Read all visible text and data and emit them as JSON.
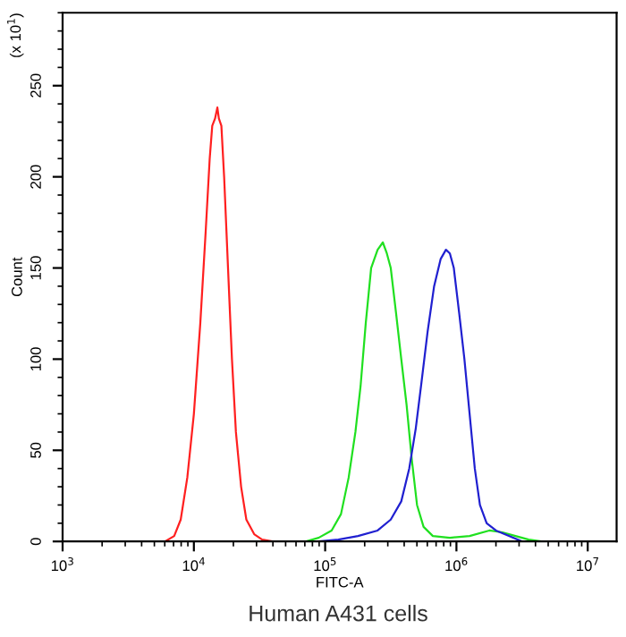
{
  "chart_data": {
    "type": "line",
    "xlabel": "FITC-A",
    "ylabel": "Count",
    "title": "Human A431 cells",
    "annotations": [
      "(x 10$^{1}$)"
    ],
    "log": "x",
    "grid": false,
    "legend": false,
    "marker": "none",
    "line_style": "solid",
    "xlim": [
      1000,
      16600000
    ],
    "ylim": [
      0,
      290
    ],
    "xticks": [
      {
        "value": 1000,
        "label": "10$^{3}$"
      },
      {
        "value": 10000,
        "label": "10$^{4}$"
      },
      {
        "value": 100000,
        "label": "10$^{5}$"
      },
      {
        "value": 1000000,
        "label": "10$^{6}$"
      },
      {
        "value": 10000000,
        "label": "10$^{7}$"
      }
    ],
    "yticks": [
      0,
      50,
      100,
      150,
      200,
      250
    ],
    "series": [
      {
        "color": "#ff2020",
        "x": [
          6030,
          7080,
          7940,
          8910,
          10000,
          11200,
          12300,
          13200,
          13800,
          14500,
          14800,
          15100,
          15500,
          16200,
          17000,
          18200,
          19500,
          20900,
          22900,
          25100,
          28800,
          33100,
          39800
        ],
        "values": [
          0,
          3,
          12,
          35,
          70,
          120,
          170,
          210,
          228,
          232,
          235,
          238,
          232,
          228,
          200,
          150,
          100,
          60,
          30,
          12,
          4,
          1,
          0
        ]
      },
      {
        "color": "#20e020",
        "x": [
          70800,
          89100,
          112000,
          132000,
          151000,
          170000,
          186000,
          204000,
          224000,
          251000,
          275000,
          295000,
          316000,
          347000,
          380000,
          417000,
          457000,
          501000,
          562000,
          661000,
          891000,
          1260000,
          1780000,
          2240000,
          2820000,
          3550000,
          4470000
        ],
        "values": [
          0,
          2,
          6,
          15,
          35,
          60,
          85,
          120,
          150,
          160,
          164,
          158,
          150,
          125,
          100,
          75,
          45,
          20,
          8,
          3,
          2,
          3,
          6,
          5,
          3,
          1,
          0
        ]
      },
      {
        "color": "#2020d0",
        "x": [
          89100,
          126000,
          178000,
          251000,
          316000,
          380000,
          437000,
          490000,
          537000,
          603000,
          676000,
          759000,
          832000,
          891000,
          955000,
          1050000,
          1150000,
          1260000,
          1380000,
          1510000,
          1700000,
          2000000,
          2510000,
          3160000
        ],
        "values": [
          0,
          1,
          3,
          6,
          12,
          22,
          40,
          62,
          85,
          115,
          140,
          155,
          160,
          158,
          150,
          125,
          100,
          70,
          40,
          20,
          10,
          6,
          3,
          0
        ]
      }
    ]
  }
}
